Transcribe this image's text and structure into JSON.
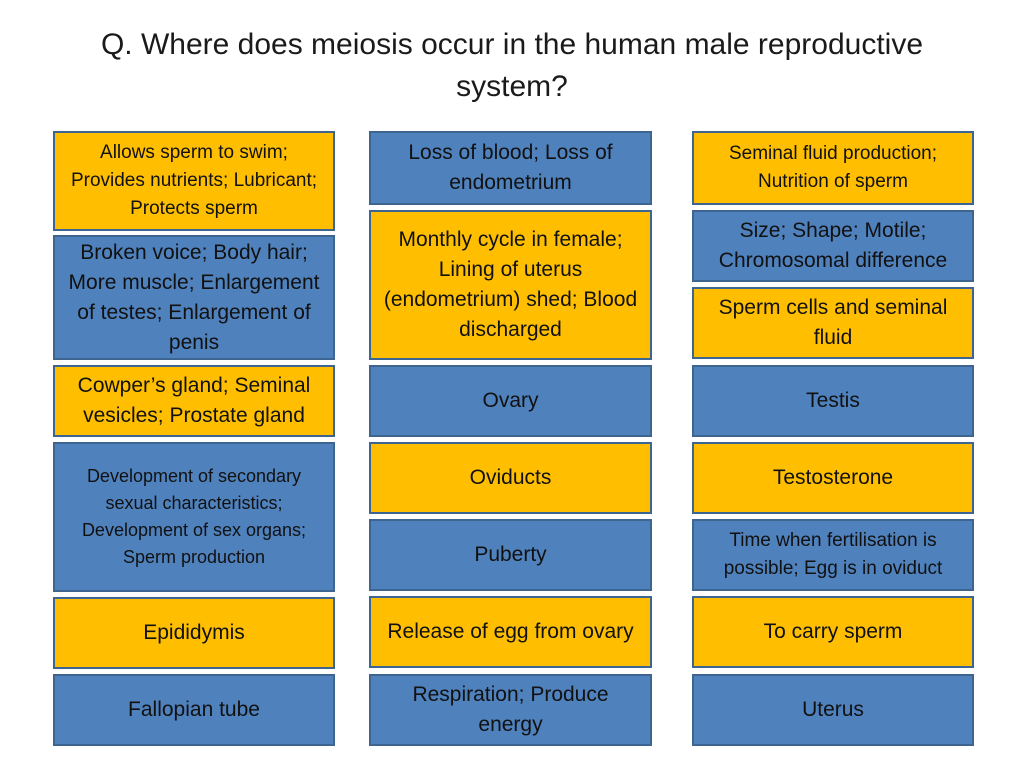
{
  "question": "Q. Where does meiosis occur in the human male reproductive system?",
  "colors": {
    "gold": "#ffbf00",
    "blue": "#4f81bd",
    "border": "#3e6490"
  },
  "columns": [
    {
      "cards": [
        {
          "text": "Allows sperm to swim; Provides nutrients; Lubricant; Protects sperm",
          "color": "gold"
        },
        {
          "text": "Broken voice; Body hair; More muscle; Enlargement of testes; Enlargement of penis",
          "color": "blue"
        },
        {
          "text": "Cowper’s gland; Seminal vesicles; Prostate gland",
          "color": "gold"
        },
        {
          "text": "Development of secondary sexual characteristics; Development of sex organs; Sperm production",
          "color": "blue"
        },
        {
          "text": "Epididymis",
          "color": "gold"
        },
        {
          "text": "Fallopian tube",
          "color": "blue"
        }
      ]
    },
    {
      "cards": [
        {
          "text": "Loss of blood; Loss of endometrium",
          "color": "blue"
        },
        {
          "text": "Monthly cycle in female; Lining of uterus (endometrium) shed; Blood discharged",
          "color": "gold"
        },
        {
          "text": "Ovary",
          "color": "blue"
        },
        {
          "text": "Oviducts",
          "color": "gold"
        },
        {
          "text": "Puberty",
          "color": "blue"
        },
        {
          "text": "Release of egg from ovary",
          "color": "gold"
        },
        {
          "text": "Respiration; Produce energy",
          "color": "blue"
        }
      ]
    },
    {
      "cards": [
        {
          "text": "Seminal fluid production; Nutrition of sperm",
          "color": "gold"
        },
        {
          "text": "Size; Shape; Motile; Chromosomal difference",
          "color": "blue"
        },
        {
          "text": "Sperm cells and seminal fluid",
          "color": "gold"
        },
        {
          "text": "Testis",
          "color": "blue"
        },
        {
          "text": "Testosterone",
          "color": "gold"
        },
        {
          "text": "Time when fertilisation is possible; Egg is in oviduct",
          "color": "blue"
        },
        {
          "text": "To carry sperm",
          "color": "gold"
        },
        {
          "text": "Uterus",
          "color": "blue"
        }
      ]
    }
  ]
}
